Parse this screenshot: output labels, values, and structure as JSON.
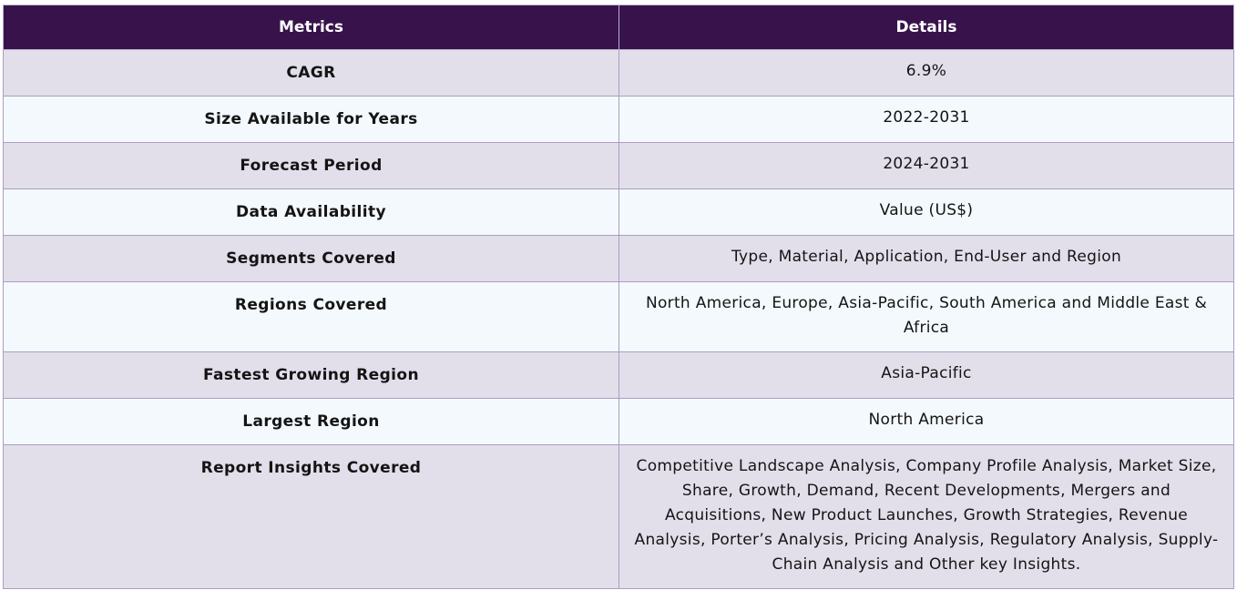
{
  "table": {
    "headers": {
      "metrics": "Metrics",
      "details": "Details"
    },
    "rows": [
      {
        "metric": "CAGR",
        "detail": "6.9%"
      },
      {
        "metric": "Size Available for Years",
        "detail": "2022-2031"
      },
      {
        "metric": "Forecast Period",
        "detail": "2024-2031"
      },
      {
        "metric": "Data Availability",
        "detail": "Value (US$)"
      },
      {
        "metric": "Segments Covered",
        "detail": "Type, Material, Application, End-User and Region"
      },
      {
        "metric": "Regions Covered",
        "detail": "North America, Europe, Asia-Pacific, South America and Middle East & Africa"
      },
      {
        "metric": "Fastest Growing Region",
        "detail": "Asia-Pacific"
      },
      {
        "metric": "Largest Region",
        "detail": "North America"
      },
      {
        "metric": "Report Insights Covered",
        "detail": "Competitive Landscape Analysis, Company Profile Analysis, Market Size, Share, Growth, Demand, Recent Developments, Mergers and Acquisitions, New Product Launches, Growth Strategies, Revenue Analysis, Porter’s Analysis, Pricing Analysis, Regulatory Analysis, Supply-Chain Analysis and Other key Insights."
      }
    ]
  },
  "colors": {
    "header_bg": "#38124b",
    "row_alt_bg": "#e2dfeb",
    "row_bg": "#f3f9fc",
    "border": "#a99dc4"
  }
}
